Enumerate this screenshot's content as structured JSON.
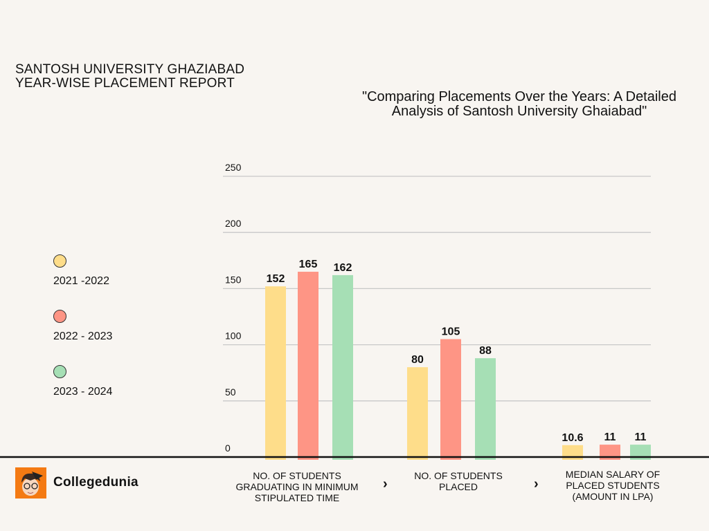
{
  "header": {
    "line1": "SANTOSH UNIVERSITY GHAZIABAD",
    "line2": "YEAR-WISE PLACEMENT REPORT"
  },
  "subtitle": "\"Comparing Placements Over the Years: A Detailed Analysis of Santosh University Ghaiabad\"",
  "brand": {
    "name": "Collegedunia",
    "logo_icon": "student-avatar-icon",
    "logo_color": "#f47a13"
  },
  "chart_data": {
    "type": "bar",
    "title": "",
    "xlabel": "",
    "ylabel": "",
    "ylim": [
      0,
      250
    ],
    "yticks": [
      0,
      50,
      100,
      150,
      200,
      250
    ],
    "grid": true,
    "legend_placement": "left",
    "categories": [
      "NO. OF STUDENTS GRADUATING IN MINIMUM STIPULATED TIME",
      "NO. OF STUDENTS PLACED",
      "MEDIAN SALARY OF PLACED STUDENTS (AMOUNT IN LPA)"
    ],
    "series": [
      {
        "name": "2021 -2022",
        "color": "#fedd8a",
        "values": [
          152,
          80,
          10.6
        ],
        "labels": [
          "152",
          "80",
          "10.6"
        ]
      },
      {
        "name": "2022 - 2023",
        "color": "#fe9585",
        "values": [
          165,
          105,
          11
        ],
        "labels": [
          "165",
          "105",
          "11"
        ]
      },
      {
        "name": "2023 - 2024",
        "color": "#a6dfb5",
        "values": [
          162,
          88,
          11
        ],
        "labels": [
          "162",
          "88",
          "11"
        ]
      }
    ],
    "separator_icon": "chevron-right-icon"
  }
}
